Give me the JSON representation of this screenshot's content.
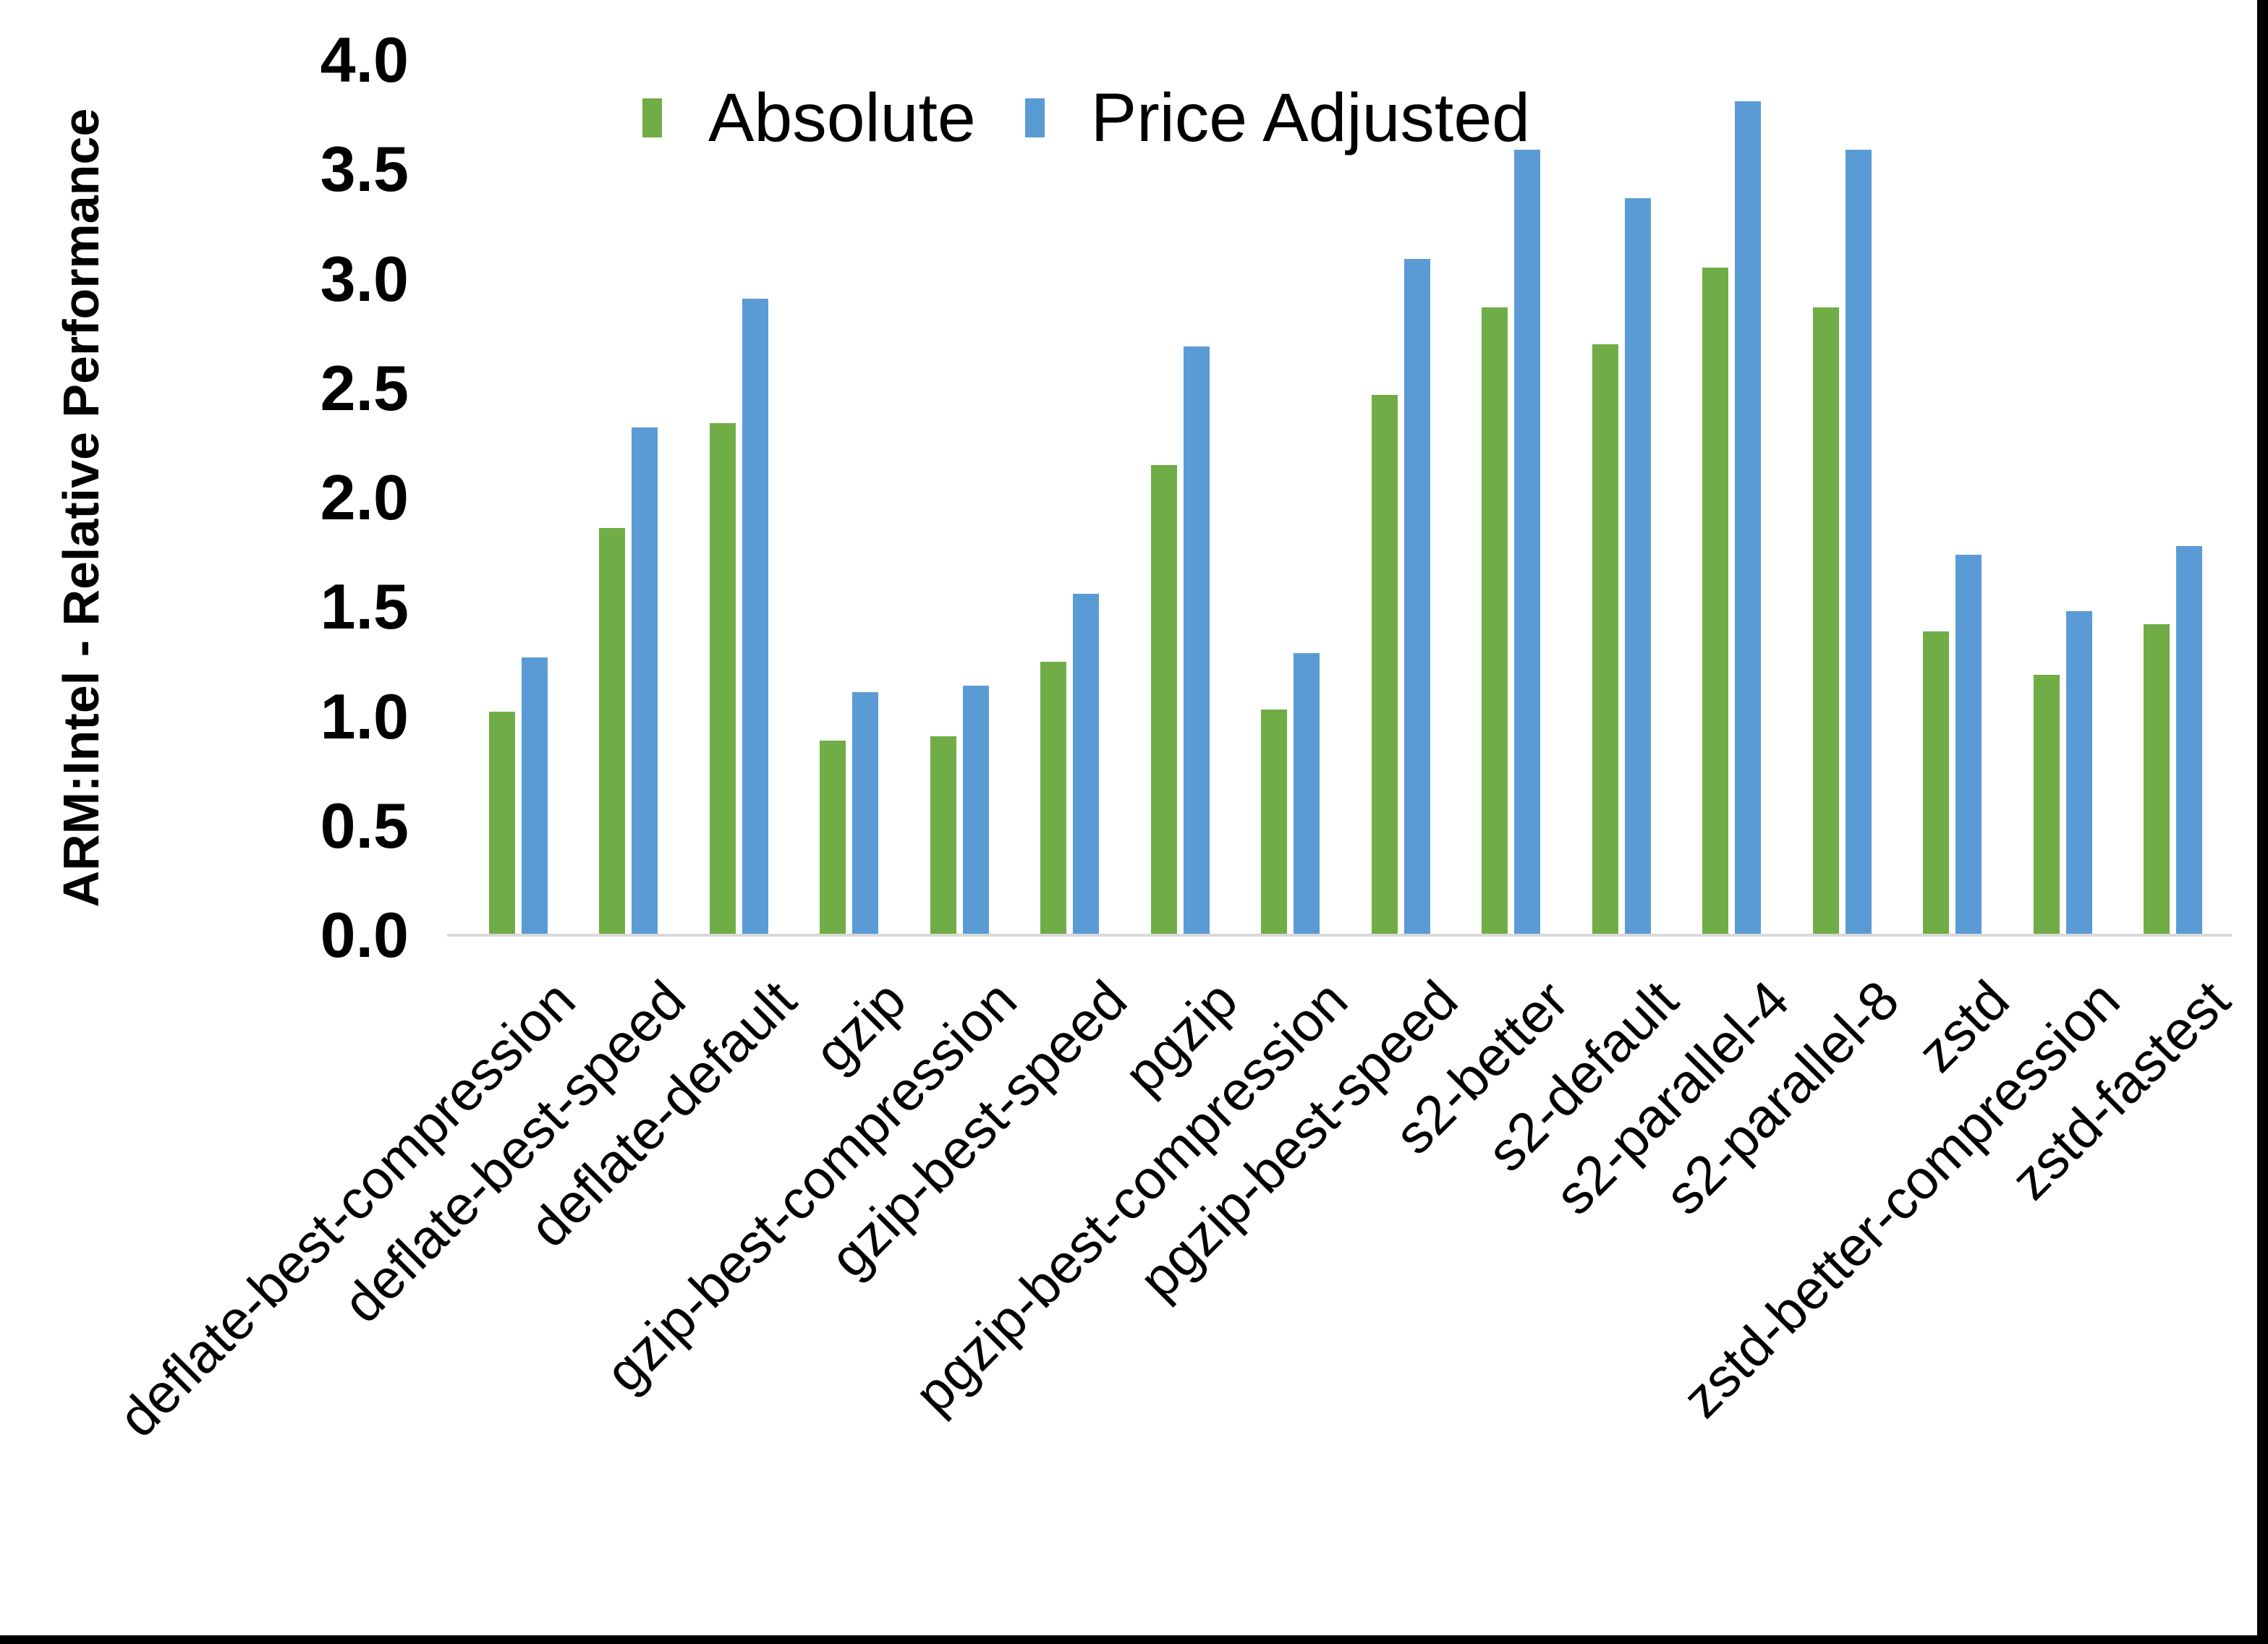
{
  "chart_data": {
    "type": "bar",
    "title": "",
    "categories": [
      "deflate-best-compression",
      "deflate-best-speed",
      "deflate-default",
      "gzip",
      "gzip-best-compression",
      "gzip-best-speed",
      "pgzip",
      "pgzip-best-compression",
      "pgzip-best-speed",
      "s2-better",
      "s2-default",
      "s2-parallel-4",
      "s2-parallel-8",
      "zstd",
      "zstd-better-compression",
      "zstd-fastest"
    ],
    "series": [
      {
        "name": "Absolute",
        "color": "#70AD47",
        "values": [
          1.02,
          1.86,
          2.34,
          0.89,
          0.91,
          1.25,
          2.15,
          1.03,
          2.47,
          2.87,
          2.7,
          3.05,
          2.87,
          1.39,
          1.19,
          1.42
        ]
      },
      {
        "name": "Price Adjusted",
        "color": "#5B9BD5",
        "values": [
          1.27,
          2.32,
          2.91,
          1.11,
          1.14,
          1.56,
          2.69,
          1.29,
          3.09,
          3.59,
          3.37,
          3.81,
          3.59,
          1.74,
          1.48,
          1.78
        ]
      }
    ],
    "xlabel": "",
    "ylabel": "ARM:Intel - Relative Performance",
    "ylim": [
      0.0,
      4.0
    ],
    "ytick_step": 0.5,
    "ytick_labels": [
      "0.0",
      "0.5",
      "1.0",
      "1.5",
      "2.0",
      "2.5",
      "3.0",
      "3.5",
      "4.0"
    ],
    "grid": false,
    "legend_position": "top-center",
    "axis_line_color": "#D9D9D9",
    "text_color": "#000000",
    "background_color": "#FFFFFF"
  }
}
